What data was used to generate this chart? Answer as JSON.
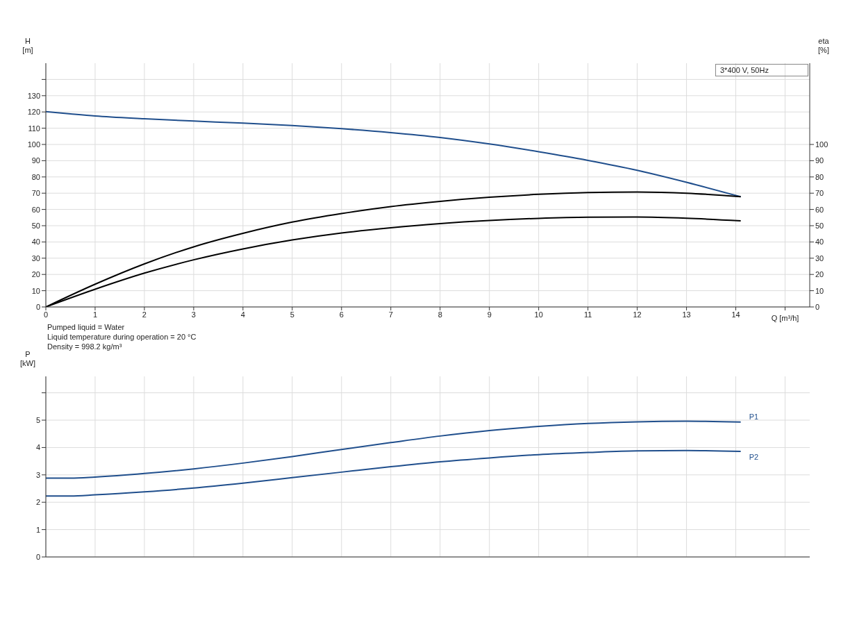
{
  "chart_data": [
    {
      "type": "line",
      "xlabel": "Q [m³/h]",
      "ylabel": "H [m]",
      "y2label": "eta [%]",
      "xlim": [
        0,
        15.5
      ],
      "xticks": [
        0,
        1,
        2,
        3,
        4,
        5,
        6,
        7,
        8,
        9,
        10,
        11,
        12,
        13,
        14,
        {
          "value": 15,
          "label": null
        }
      ],
      "ylim": [
        0,
        150
      ],
      "yticks": [
        0,
        10,
        20,
        30,
        40,
        50,
        60,
        70,
        80,
        90,
        100,
        110,
        120,
        130,
        {
          "value": 140,
          "label": null
        }
      ],
      "y2lim": [
        0,
        150
      ],
      "y2ticks": [
        0,
        10,
        20,
        30,
        40,
        50,
        60,
        70,
        80,
        90,
        100
      ],
      "grid": true,
      "legend": false,
      "marker": "none",
      "line_style": "solid",
      "annotations": [
        "3*400 V, 50Hz",
        "Pumped liquid = Water",
        "Liquid temperature during operation = 20 °C",
        "Density = 998.2 kg/m³"
      ],
      "series": [
        {
          "color": "#1f4e8c",
          "x": [
            0,
            0.5,
            1,
            2,
            3,
            4,
            5,
            6,
            7,
            8,
            9,
            10,
            11,
            12,
            13,
            14.1
          ],
          "values": [
            120.2,
            118.8,
            117.5,
            115.8,
            114.4,
            113.1,
            111.6,
            109.7,
            107.3,
            104.3,
            100.3,
            95.5,
            90.2,
            84.1,
            76.7,
            67.8
          ]
        },
        {
          "color": "#000000",
          "axis": "y2",
          "x": [
            0,
            1,
            2,
            3,
            4,
            5,
            6,
            7,
            8,
            9,
            10,
            11,
            12,
            13,
            14.1
          ],
          "values": [
            0,
            14,
            26.5,
            37,
            45.3,
            52.2,
            57.5,
            61.8,
            65,
            67.5,
            69.3,
            70.4,
            70.7,
            70,
            67.8
          ]
        },
        {
          "color": "#000000",
          "axis": "y2",
          "x": [
            0,
            1,
            2,
            3,
            4,
            5,
            6,
            7,
            8,
            9,
            10,
            11,
            12,
            13,
            14.1
          ],
          "values": [
            0,
            10.9,
            20.8,
            29,
            35.7,
            41.2,
            45.5,
            48.7,
            51.3,
            53.2,
            54.5,
            55.2,
            55.3,
            54.6,
            53
          ]
        }
      ]
    },
    {
      "type": "line",
      "ylabel": "P [kW]",
      "xlim": [
        0,
        15.5
      ],
      "xticks": [
        0,
        1,
        2,
        3,
        4,
        5,
        6,
        7,
        8,
        9,
        10,
        11,
        12,
        13,
        14,
        15
      ],
      "ylim": [
        0,
        6.6
      ],
      "yticks": [
        0,
        1,
        2,
        3,
        4,
        5,
        {
          "value": 6,
          "label": null
        }
      ],
      "tick_labels": "y",
      "grid": true,
      "legend": false,
      "marker": "none",
      "line_style": "solid",
      "series": [
        {
          "name": "P1",
          "color": "#1f4e8c",
          "x": [
            0,
            0.5,
            1,
            2,
            3,
            4,
            5,
            6,
            7,
            8,
            9,
            10,
            11,
            12,
            13,
            14.1
          ],
          "values": [
            2.88,
            2.88,
            2.92,
            3.05,
            3.22,
            3.43,
            3.67,
            3.93,
            4.18,
            4.42,
            4.62,
            4.77,
            4.88,
            4.94,
            4.96,
            4.93
          ]
        },
        {
          "name": "P2",
          "color": "#1f4e8c",
          "x": [
            0,
            0.5,
            1,
            2,
            3,
            4,
            5,
            6,
            7,
            8,
            9,
            10,
            11,
            12,
            13,
            14.1
          ],
          "values": [
            2.23,
            2.23,
            2.27,
            2.38,
            2.52,
            2.7,
            2.9,
            3.1,
            3.3,
            3.48,
            3.62,
            3.74,
            3.82,
            3.88,
            3.89,
            3.86
          ]
        }
      ]
    }
  ]
}
